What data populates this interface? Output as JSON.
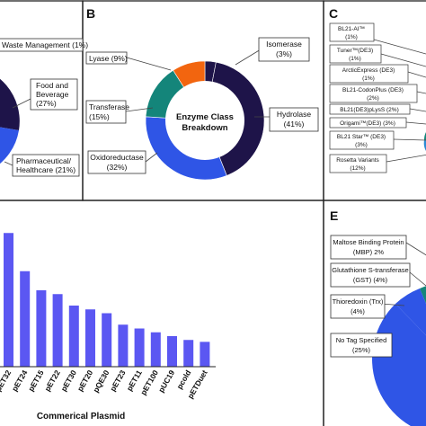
{
  "panels": {
    "A": {
      "letter": "",
      "chart_type": "pie",
      "labels": [
        {
          "text": "Waste Management (1%)",
          "lines": [
            "Waste Management (1%)"
          ]
        },
        {
          "text": "Food and Beverage (27%)",
          "lines": [
            "Food and",
            "Beverage",
            "(27%)"
          ]
        },
        {
          "text": "Pharmaceutical/ Healthcare (21%)",
          "lines": [
            "Pharmaceutical/",
            "Healthcare (21%)"
          ]
        }
      ]
    },
    "B": {
      "letter": "B",
      "center_label": [
        "Enzyme Class",
        "Breakdown"
      ],
      "labels": [
        {
          "text": "Lyase (9%)",
          "lines": [
            "Lyase (9%)"
          ]
        },
        {
          "text": "Isomerase (3%)",
          "lines": [
            "Isomerase",
            "(3%)"
          ]
        },
        {
          "text": "Transferase (15%)",
          "lines": [
            "Transferase",
            "(15%)"
          ]
        },
        {
          "text": "Hydrolase (41%)",
          "lines": [
            "Hydrolase",
            "(41%)"
          ]
        },
        {
          "text": "Oxidoreductase (32%)",
          "lines": [
            "Oxidoreductase",
            "(32%)"
          ]
        }
      ]
    },
    "C": {
      "letter": "C",
      "labels": [
        {
          "text": "BL21-AI™ (1%)",
          "lines": [
            "BL21-AI™",
            "(1%)"
          ]
        },
        {
          "text": "Tuner™(DE3) (1%)",
          "lines": [
            "Tuner™(DE3)",
            "(1%)"
          ]
        },
        {
          "text": "ArcticExpress (DE3) (1%)",
          "lines": [
            "ArcticExpress (DE3)",
            "(1%)"
          ]
        },
        {
          "text": "BL21-CodonPlus (DE3) (2%)",
          "lines": [
            "BL21-CodonPlus (DE3)",
            "(2%)"
          ]
        },
        {
          "text": "BL21(DE3)pLysS (2%)",
          "lines": [
            "BL21(DE3)pLysS (2%)"
          ]
        },
        {
          "text": "Origami™(DE3) (3%)",
          "lines": [
            "Origami™(DE3) (3%)"
          ]
        },
        {
          "text": "BL21 Star™ (DE3) (3%)",
          "lines": [
            "BL21 Star™ (DE3)",
            "(3%)"
          ]
        },
        {
          "text": "Rosetta Variants (12%)",
          "lines": [
            "Rosetta Variants",
            "(12%)"
          ]
        }
      ]
    },
    "D": {
      "letter": "",
      "xlabel": "Commerical Plasmid",
      "bar_color": "#5b57f2",
      "categories": [
        "pET32",
        "pET24",
        "pET15",
        "pET22",
        "pET30",
        "pET20",
        "pQE30",
        "pET23",
        "pET11",
        "pET100",
        "pUC19",
        "pcold",
        "pETDuet"
      ]
    },
    "E": {
      "letter": "E",
      "labels": [
        {
          "text": "Maltose Binding Protein (MBP) 2%",
          "lines": [
            "Maltose Binding Protein",
            "(MBP) 2%"
          ]
        },
        {
          "text": "Glutathione S-transferase (GST) (4%)",
          "lines": [
            "Glutathione S-transferase",
            "(GST) (4%)"
          ]
        },
        {
          "text": "Thioredoxin (Trx) (4%)",
          "lines": [
            "Thioredoxin (Trx)",
            "(4%)"
          ]
        },
        {
          "text": "No Tag Specified (25%)",
          "lines": [
            "No Tag Specified",
            "(25%)"
          ]
        }
      ]
    }
  },
  "colors": {
    "navy": "#1e1449",
    "blue": "#2f55e6",
    "mid_blue": "#2c8ad4",
    "teal": "#14857a",
    "orange": "#f2650f",
    "light_blue": "#3da0f0",
    "border": "#222222"
  },
  "chart_data": [
    {
      "type": "pie",
      "panel": "A",
      "values": [
        1,
        27,
        21
      ],
      "labels": [
        "Waste Management (1%)",
        "Food and Beverage (27%)",
        "Pharmaceutical/ Healthcare (21%)"
      ]
    },
    {
      "type": "pie",
      "panel": "B",
      "title": "Enzyme Class Breakdown",
      "categories": [
        "Isomerase",
        "Hydrolase",
        "Oxidoreductase",
        "Transferase",
        "Lyase"
      ],
      "values": [
        3,
        41,
        32,
        15,
        9
      ],
      "colors": [
        "#1e1449",
        "#1e1449",
        "#2f55e6",
        "#14857a",
        "#f2650f"
      ]
    },
    {
      "type": "pie",
      "panel": "C",
      "categories": [
        "BL21-AI™",
        "Tuner™(DE3)",
        "ArcticExpress (DE3)",
        "BL21-CodonPlus (DE3)",
        "BL21(DE3)pLysS",
        "Origami™(DE3)",
        "BL21 Star™ (DE3)",
        "Rosetta Variants"
      ],
      "values": [
        1,
        1,
        1,
        2,
        2,
        3,
        3,
        12
      ]
    },
    {
      "type": "bar",
      "panel": "D",
      "xlabel": "Commerical Plasmid",
      "ylabel": "",
      "categories": [
        "pET32",
        "pET24",
        "pET15",
        "pET22",
        "pET30",
        "pET20",
        "pQE30",
        "pET23",
        "pET11",
        "pET100",
        "pUC19",
        "pcold",
        "pETDuet"
      ],
      "values": [
        7.0,
        5.0,
        4.0,
        3.8,
        3.2,
        3.0,
        2.8,
        2.2,
        2.0,
        1.8,
        1.6,
        1.4,
        1.3
      ],
      "ylim": [
        0,
        8
      ]
    },
    {
      "type": "pie",
      "panel": "E",
      "categories": [
        "Maltose Binding Protein (MBP)",
        "Glutathione S-transferase (GST)",
        "Thioredoxin (Trx)",
        "No Tag Specified"
      ],
      "values": [
        2,
        4,
        4,
        25
      ]
    }
  ]
}
